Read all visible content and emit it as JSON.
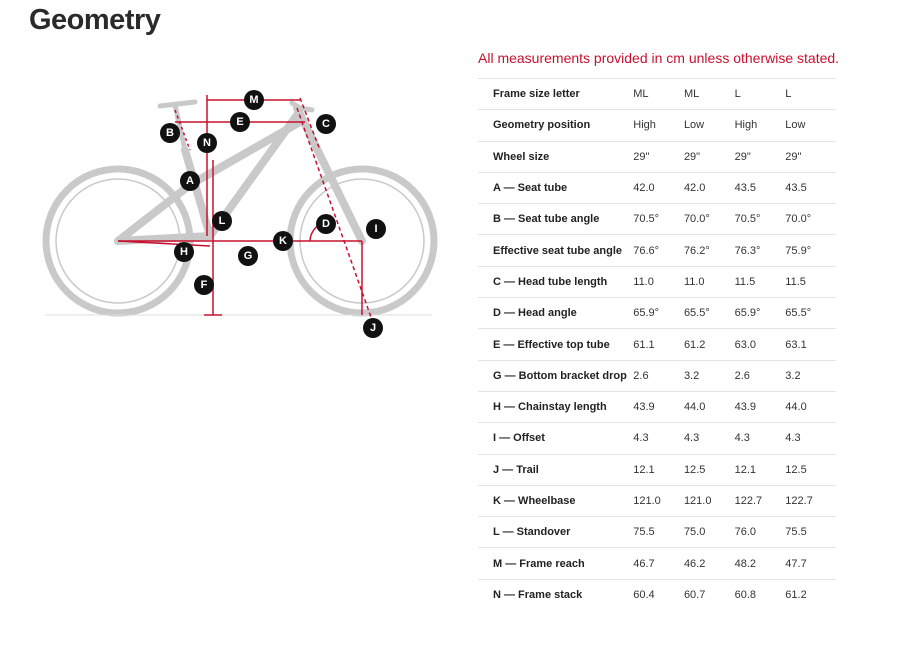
{
  "title": "Geometry",
  "note": "All measurements provided in cm unless otherwise stated.",
  "diagram_labels": {
    "M": "M",
    "E": "E",
    "C": "C",
    "B": "B",
    "N": "N",
    "A": "A",
    "L": "L",
    "D": "D",
    "I": "I",
    "K": "K",
    "H": "H",
    "G": "G",
    "F": "F",
    "J": "J"
  },
  "colors": {
    "accent": "#c8102e",
    "frame": "#c9c9c9"
  },
  "table": {
    "rows": [
      {
        "label": "Frame size letter",
        "values": [
          "ML",
          "ML",
          "L",
          "L"
        ]
      },
      {
        "label": "Geometry position",
        "values": [
          "High",
          "Low",
          "High",
          "Low"
        ]
      },
      {
        "label": "Wheel size",
        "values": [
          "29\"",
          "29\"",
          "29\"",
          "29\""
        ]
      },
      {
        "label": "A — Seat tube",
        "values": [
          "42.0",
          "42.0",
          "43.5",
          "43.5"
        ]
      },
      {
        "label": "B — Seat tube angle",
        "values": [
          "70.5°",
          "70.0°",
          "70.5°",
          "70.0°"
        ]
      },
      {
        "label": "Effective seat tube angle",
        "values": [
          "76.6°",
          "76.2°",
          "76.3°",
          "75.9°"
        ]
      },
      {
        "label": "C — Head tube length",
        "values": [
          "11.0",
          "11.0",
          "11.5",
          "11.5"
        ]
      },
      {
        "label": "D — Head angle",
        "values": [
          "65.9°",
          "65.5°",
          "65.9°",
          "65.5°"
        ]
      },
      {
        "label": "E — Effective top tube",
        "values": [
          "61.1",
          "61.2",
          "63.0",
          "63.1"
        ]
      },
      {
        "label": "G — Bottom bracket drop",
        "values": [
          "2.6",
          "3.2",
          "2.6",
          "3.2"
        ]
      },
      {
        "label": "H — Chainstay length",
        "values": [
          "43.9",
          "44.0",
          "43.9",
          "44.0"
        ]
      },
      {
        "label": "I — Offset",
        "values": [
          "4.3",
          "4.3",
          "4.3",
          "4.3"
        ]
      },
      {
        "label": "J — Trail",
        "values": [
          "12.1",
          "12.5",
          "12.1",
          "12.5"
        ]
      },
      {
        "label": "K — Wheelbase",
        "values": [
          "121.0",
          "121.0",
          "122.7",
          "122.7"
        ]
      },
      {
        "label": "L — Standover",
        "values": [
          "75.5",
          "75.0",
          "76.0",
          "75.5"
        ]
      },
      {
        "label": "M — Frame reach",
        "values": [
          "46.7",
          "46.2",
          "48.2",
          "47.7"
        ]
      },
      {
        "label": "N — Frame stack",
        "values": [
          "60.4",
          "60.7",
          "60.8",
          "61.2"
        ]
      }
    ]
  }
}
